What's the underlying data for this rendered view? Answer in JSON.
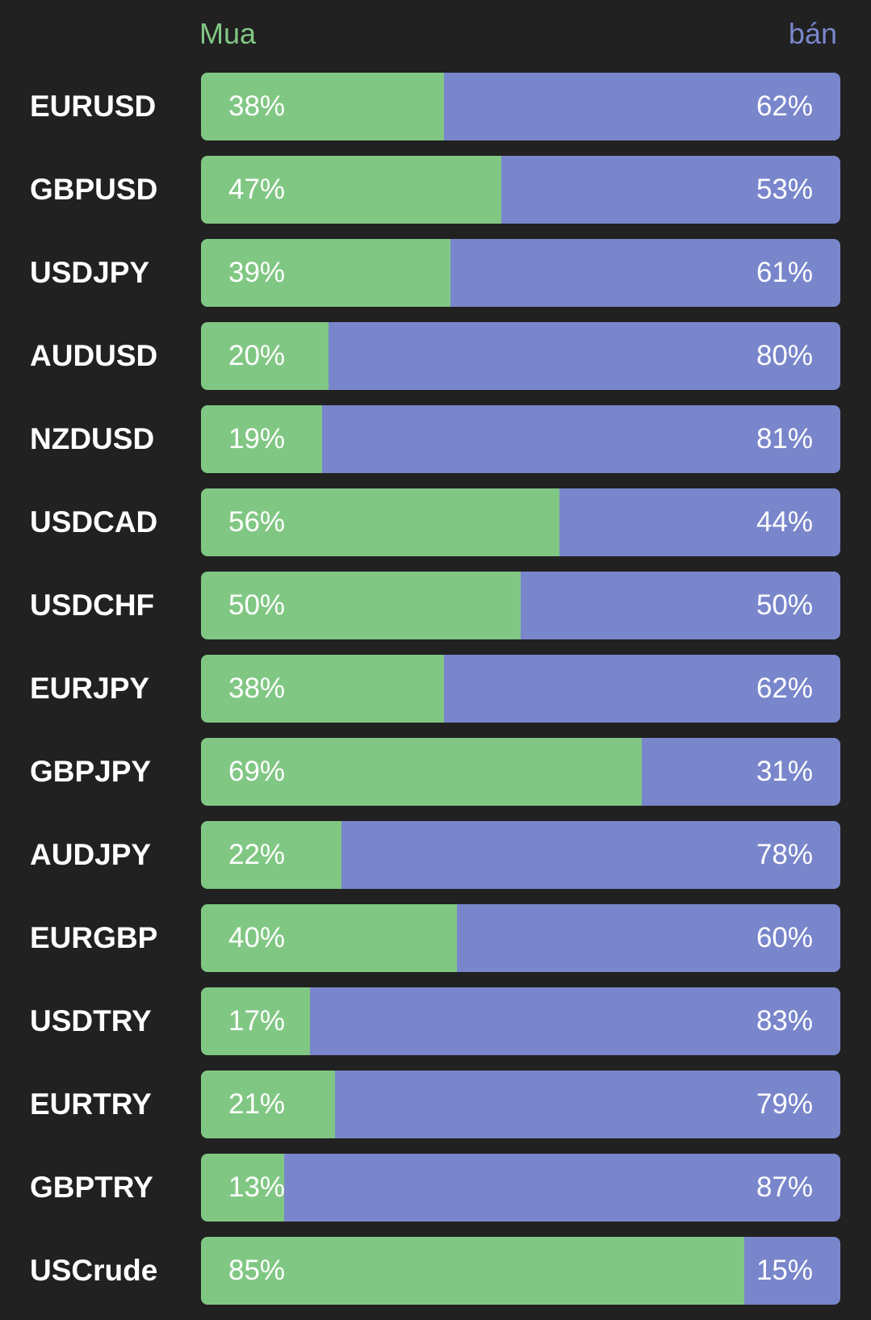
{
  "header": {
    "buy_label": "Mua",
    "sell_label": "bán"
  },
  "colors": {
    "background": "#212121",
    "buy": "#81c784",
    "sell": "#7986cb",
    "text": "#ffffff"
  },
  "sentiment": [
    {
      "pair": "EURUSD",
      "buy": 38,
      "sell": 62,
      "buy_label": "38%",
      "sell_label": "62%"
    },
    {
      "pair": "GBPUSD",
      "buy": 47,
      "sell": 53,
      "buy_label": "47%",
      "sell_label": "53%"
    },
    {
      "pair": "USDJPY",
      "buy": 39,
      "sell": 61,
      "buy_label": "39%",
      "sell_label": "61%"
    },
    {
      "pair": "AUDUSD",
      "buy": 20,
      "sell": 80,
      "buy_label": "20%",
      "sell_label": "80%"
    },
    {
      "pair": "NZDUSD",
      "buy": 19,
      "sell": 81,
      "buy_label": "19%",
      "sell_label": "81%"
    },
    {
      "pair": "USDCAD",
      "buy": 56,
      "sell": 44,
      "buy_label": "56%",
      "sell_label": "44%"
    },
    {
      "pair": "USDCHF",
      "buy": 50,
      "sell": 50,
      "buy_label": "50%",
      "sell_label": "50%"
    },
    {
      "pair": "EURJPY",
      "buy": 38,
      "sell": 62,
      "buy_label": "38%",
      "sell_label": "62%"
    },
    {
      "pair": "GBPJPY",
      "buy": 69,
      "sell": 31,
      "buy_label": "69%",
      "sell_label": "31%"
    },
    {
      "pair": "AUDJPY",
      "buy": 22,
      "sell": 78,
      "buy_label": "22%",
      "sell_label": "78%"
    },
    {
      "pair": "EURGBP",
      "buy": 40,
      "sell": 60,
      "buy_label": "40%",
      "sell_label": "60%"
    },
    {
      "pair": "USDTRY",
      "buy": 17,
      "sell": 83,
      "buy_label": "17%",
      "sell_label": "83%"
    },
    {
      "pair": "EURTRY",
      "buy": 21,
      "sell": 79,
      "buy_label": "21%",
      "sell_label": "79%"
    },
    {
      "pair": "GBPTRY",
      "buy": 13,
      "sell": 87,
      "buy_label": "13%",
      "sell_label": "87%"
    },
    {
      "pair": "USCrude",
      "buy": 85,
      "sell": 15,
      "buy_label": "85%",
      "sell_label": "15%"
    }
  ]
}
